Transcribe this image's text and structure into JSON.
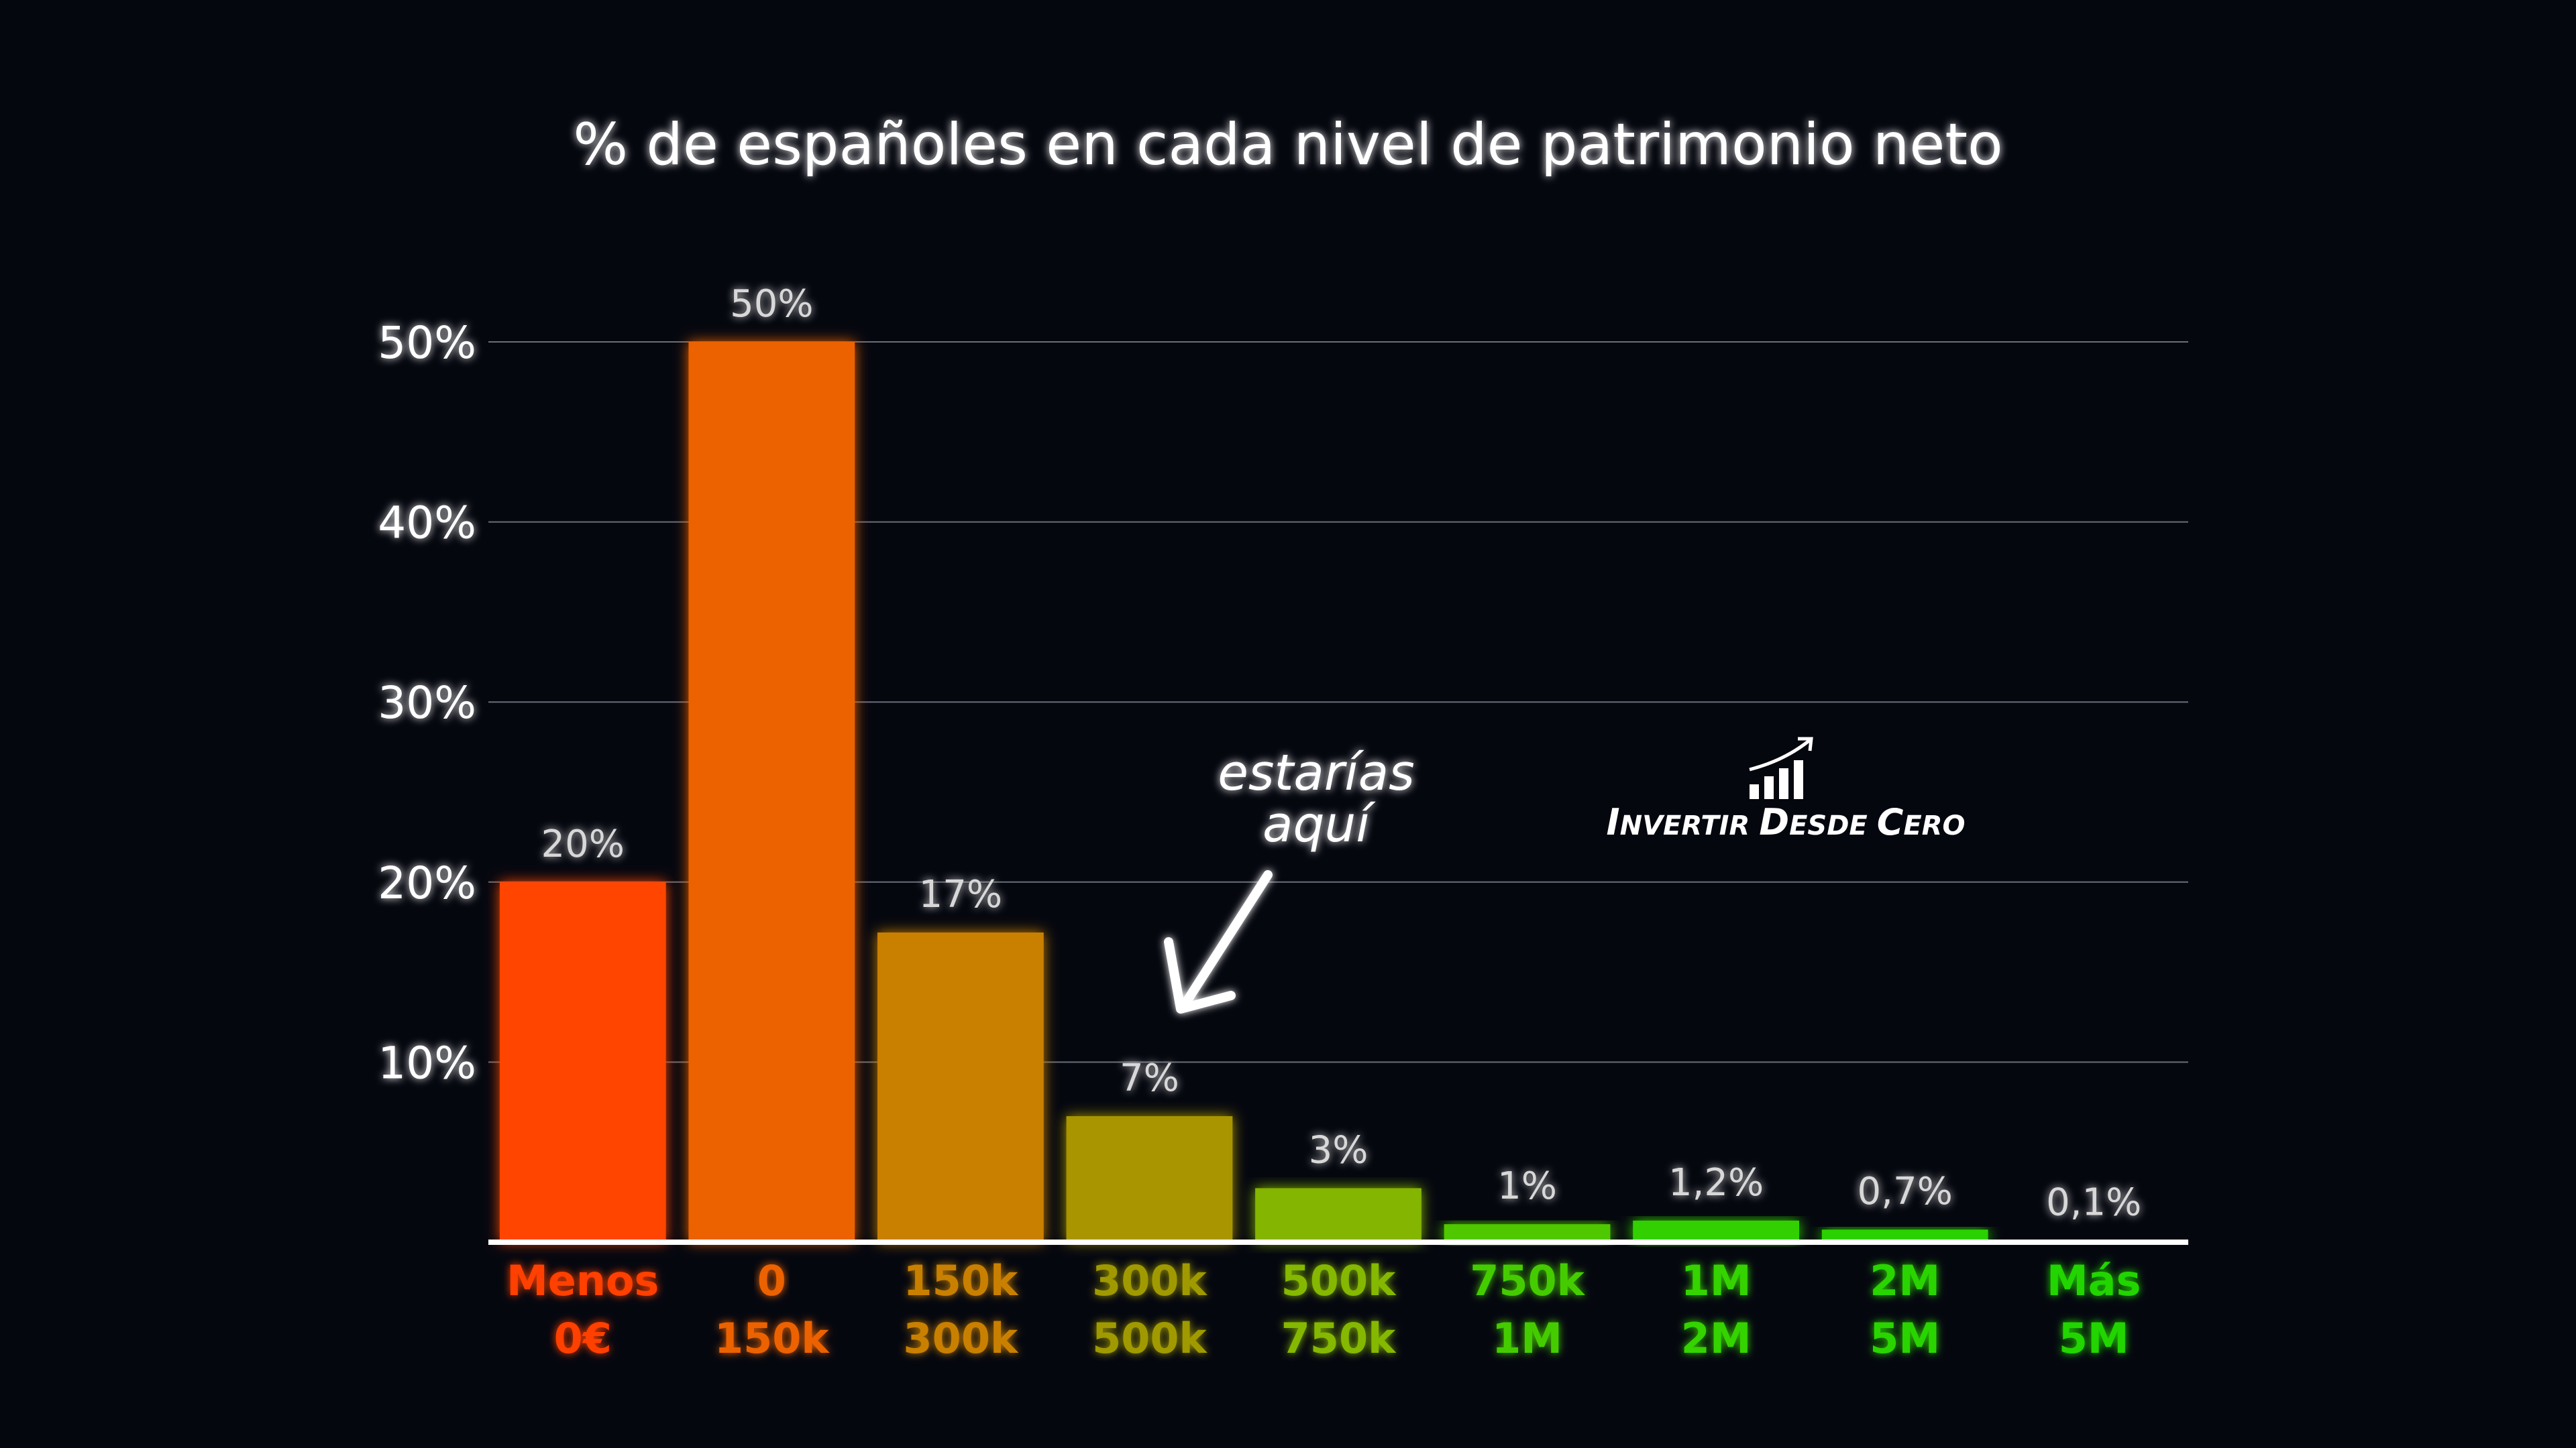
{
  "chart_data": {
    "type": "bar",
    "title": "% de españoles en cada nivel de patrimonio neto",
    "categories": [
      [
        "Menos",
        "0€"
      ],
      [
        "0",
        "150k"
      ],
      [
        "150k",
        "300k"
      ],
      [
        "300k",
        "500k"
      ],
      [
        "500k",
        "750k"
      ],
      [
        "750k",
        "1M"
      ],
      [
        "1M",
        "2M"
      ],
      [
        "2M",
        "5M"
      ],
      [
        "Más",
        "5M"
      ]
    ],
    "values": [
      20,
      50,
      17.2,
      7,
      3,
      1,
      1.2,
      0.7,
      0.1
    ],
    "data_labels": [
      "20%",
      "50%",
      "17%",
      "7%",
      "3%",
      "1%",
      "1,2%",
      "0,7%",
      "0,1%"
    ],
    "colors": [
      "#ff4500",
      "#ec6200",
      "#c97f00",
      "#a89500",
      "#84b500",
      "#4fc800",
      "#33d000",
      "#2bd100",
      "#25d000"
    ],
    "label_colors": [
      "#ff4000",
      "#ec6200",
      "#c98000",
      "#a09a00",
      "#85b800",
      "#45cc00",
      "#35d300",
      "#2ad400",
      "#20d500"
    ],
    "ylim": [
      0,
      50
    ],
    "yticks": [
      10,
      20,
      30,
      40,
      50
    ],
    "ytick_labels": [
      "10%",
      "20%",
      "30%",
      "40%",
      "50%"
    ],
    "grid": true,
    "xlabel": "",
    "ylabel": ""
  },
  "annotation": {
    "line1": "estarías",
    "line2": "aquí"
  },
  "logo": {
    "text": "Invertir Desde Cero",
    "icon": "bar-chart-growth-icon"
  }
}
